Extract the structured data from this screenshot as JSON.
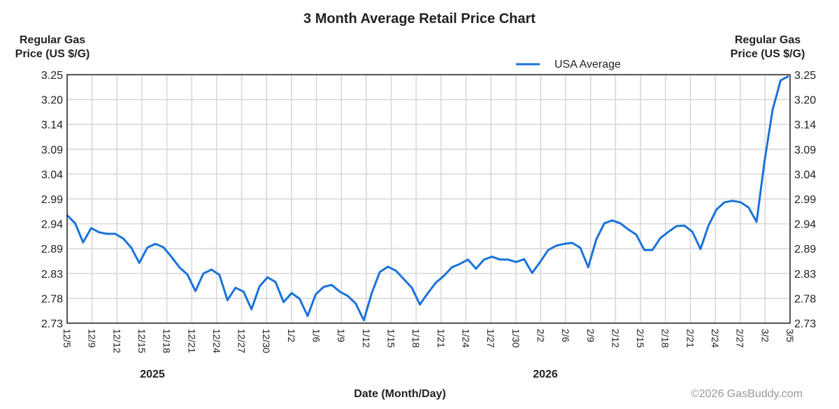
{
  "chart_data": {
    "type": "line",
    "title": "3 Month Average Retail Price Chart",
    "ylabel_left": [
      "Regular Gas",
      "Price (US $/G)"
    ],
    "ylabel_right": [
      "Regular Gas",
      "Price (US $/G)"
    ],
    "xlabel": "Date (Month/Day)",
    "ylim": [
      2.73,
      3.25
    ],
    "yticks": [
      "3.25",
      "3.20",
      "3.14",
      "3.09",
      "3.04",
      "2.99",
      "2.94",
      "2.89",
      "2.83",
      "2.78",
      "2.73"
    ],
    "xticks": [
      "12/5",
      "12/9",
      "12/12",
      "12/15",
      "12/18",
      "12/21",
      "12/24",
      "12/27",
      "12/30",
      "1/2",
      "1/6",
      "1/9",
      "1/12",
      "1/15",
      "1/18",
      "1/21",
      "1/24",
      "1/27",
      "1/30",
      "2/2",
      "2/6",
      "2/9",
      "2/12",
      "2/15",
      "2/18",
      "2/21",
      "2/24",
      "2/27",
      "3/2",
      "3/5"
    ],
    "year_labels": [
      {
        "label": "2025",
        "at_tick": "12/15"
      },
      {
        "label": "2026",
        "at_tick": "2/6"
      }
    ],
    "grid": true,
    "legend_position": "top-right",
    "series": [
      {
        "name": "USA Average",
        "color": "#1a73d9",
        "values": [
          2.956,
          2.939,
          2.899,
          2.929,
          2.92,
          2.917,
          2.917,
          2.907,
          2.888,
          2.856,
          2.888,
          2.896,
          2.889,
          2.869,
          2.847,
          2.832,
          2.797,
          2.834,
          2.842,
          2.831,
          2.778,
          2.804,
          2.796,
          2.759,
          2.807,
          2.826,
          2.816,
          2.774,
          2.793,
          2.781,
          2.745,
          2.79,
          2.806,
          2.81,
          2.796,
          2.787,
          2.771,
          2.736,
          2.793,
          2.837,
          2.848,
          2.84,
          2.822,
          2.804,
          2.769,
          2.793,
          2.815,
          2.829,
          2.847,
          2.854,
          2.863,
          2.844,
          2.863,
          2.869,
          2.863,
          2.863,
          2.858,
          2.864,
          2.835,
          2.858,
          2.883,
          2.892,
          2.896,
          2.898,
          2.888,
          2.847,
          2.905,
          2.939,
          2.945,
          2.939,
          2.926,
          2.915,
          2.883,
          2.883,
          2.908,
          2.921,
          2.933,
          2.934,
          2.921,
          2.885,
          2.934,
          2.968,
          2.983,
          2.986,
          2.983,
          2.972,
          2.942,
          3.07,
          3.177,
          3.238,
          3.247
        ]
      }
    ]
  },
  "credit": "©2026 GasBuddy.com"
}
